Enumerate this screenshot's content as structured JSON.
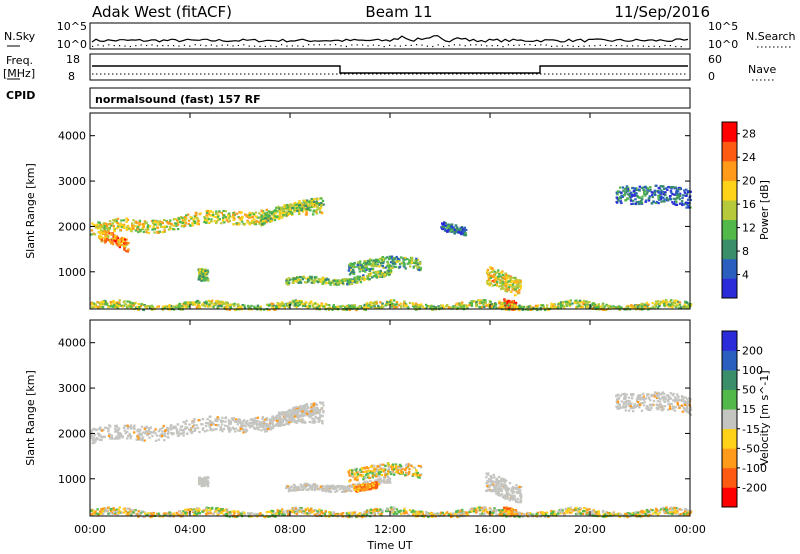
{
  "header": {
    "station": "Adak West (fitACF)",
    "beam": "Beam 11",
    "date": "11/Sep/2016"
  },
  "parameter_panels": {
    "nsky_label": "N.Sky",
    "nsky_ticks": [
      "10^5",
      "10^0"
    ],
    "nsearch_label": "N.Search",
    "nsearch_ticks": [
      "10^5",
      "10^0"
    ],
    "freq_label": "Freq.",
    "freq_unit": "[MHz]",
    "freq_ticks": [
      "18",
      "8"
    ],
    "nave_label": "Nave",
    "nave_ticks": [
      "60",
      "0"
    ],
    "cpid_label": "CPID",
    "cpid_value": "normalsound (fast) 157 RF"
  },
  "colors": {
    "scale": [
      "#2b2bd9",
      "#2b5fbf",
      "#3a8f6a",
      "#52b84a",
      "#b5c93a",
      "#ffd21a",
      "#ff9a1a",
      "#ff5a12",
      "#ff0000"
    ],
    "ground_scatter": "#c4c4c0"
  },
  "chart_data": [
    {
      "type": "heatmap",
      "panel": "power",
      "ylabel": "Slant Range [km]",
      "xlabel": "",
      "xlim": [
        0,
        24
      ],
      "ylim": [
        180,
        4500
      ],
      "y_ticks": [
        "1000",
        "2000",
        "3000",
        "4000"
      ],
      "colorbar_label": "Power [dB]",
      "colorbar_ticks": [
        "4",
        "8",
        "12",
        "16",
        "20",
        "24",
        "28"
      ],
      "colorbar_range": [
        0,
        30
      ],
      "regions": [
        {
          "x0": 0.0,
          "x1": 9.3,
          "y_start": 1950,
          "y_end": 2400,
          "thickness": 280,
          "level": 0.55
        },
        {
          "x0": 0.3,
          "x1": 1.5,
          "y_start": 1800,
          "y_end": 1550,
          "thickness": 260,
          "level": 0.75
        },
        {
          "x0": 6.8,
          "x1": 9.3,
          "y_start": 2200,
          "y_end": 2550,
          "thickness": 220,
          "level": 0.45
        },
        {
          "x0": 4.3,
          "x1": 4.7,
          "y_start": 900,
          "y_end": 900,
          "thickness": 260,
          "level": 0.4
        },
        {
          "x0": 7.8,
          "x1": 12.0,
          "y_start": 760,
          "y_end": 950,
          "thickness": 140,
          "level": 0.4
        },
        {
          "x0": 10.3,
          "x1": 13.2,
          "y_start": 1150,
          "y_end": 1200,
          "thickness": 260,
          "level": 0.35
        },
        {
          "x0": 15.8,
          "x1": 17.2,
          "y_start": 900,
          "y_end": 700,
          "thickness": 420,
          "level": 0.6
        },
        {
          "x0": 16.5,
          "x1": 17.0,
          "y_start": 300,
          "y_end": 300,
          "thickness": 220,
          "level": 0.95
        },
        {
          "x0": 0.0,
          "x1": 24.0,
          "y_start": 260,
          "y_end": 260,
          "thickness": 160,
          "level": 0.5
        },
        {
          "x0": 21.0,
          "x1": 24.0,
          "y_start": 2800,
          "y_end": 2600,
          "thickness": 400,
          "level": 0.15
        },
        {
          "x0": 14.0,
          "x1": 15.0,
          "y_start": 2100,
          "y_end": 1900,
          "thickness": 200,
          "level": 0.15
        }
      ]
    },
    {
      "type": "heatmap",
      "panel": "velocity",
      "ylabel": "Slant Range [km]",
      "xlabel": "Time UT",
      "xlim": [
        0,
        24
      ],
      "ylim": [
        180,
        4500
      ],
      "x_ticks": [
        "00:00",
        "04:00",
        "08:00",
        "12:00",
        "16:00",
        "20:00",
        "00:00"
      ],
      "y_ticks": [
        "1000",
        "2000",
        "3000",
        "4000"
      ],
      "colorbar_label": "Velocity [m s^-1]",
      "colorbar_ticks": [
        "200",
        "100",
        "50",
        "15",
        "-15",
        "-50",
        "-100",
        "-200"
      ],
      "colorbar_range": [
        -250,
        250
      ],
      "regions": [
        {
          "x0": 0.0,
          "x1": 9.3,
          "y_start": 1950,
          "y_end": 2400,
          "thickness": 320,
          "kind": "ground"
        },
        {
          "x0": 6.8,
          "x1": 9.3,
          "y_start": 2200,
          "y_end": 2600,
          "thickness": 260,
          "kind": "ground"
        },
        {
          "x0": 4.3,
          "x1": 4.7,
          "y_start": 900,
          "y_end": 900,
          "thickness": 200,
          "kind": "ground"
        },
        {
          "x0": 7.8,
          "x1": 12.0,
          "y_start": 760,
          "y_end": 950,
          "thickness": 140,
          "kind": "ground"
        },
        {
          "x0": 10.5,
          "x1": 11.5,
          "y_start": 850,
          "y_end": 850,
          "thickness": 140,
          "kind": "negative"
        },
        {
          "x0": 10.3,
          "x1": 13.2,
          "y_start": 1150,
          "y_end": 1200,
          "thickness": 260,
          "kind": "mixed"
        },
        {
          "x0": 15.8,
          "x1": 17.2,
          "y_start": 900,
          "y_end": 700,
          "thickness": 420,
          "kind": "ground"
        },
        {
          "x0": 16.5,
          "x1": 17.0,
          "y_start": 300,
          "y_end": 300,
          "thickness": 180,
          "kind": "negative"
        },
        {
          "x0": 0.0,
          "x1": 24.0,
          "y_start": 260,
          "y_end": 260,
          "thickness": 150,
          "kind": "mixed"
        },
        {
          "x0": 21.0,
          "x1": 24.0,
          "y_start": 2800,
          "y_end": 2600,
          "thickness": 400,
          "kind": "ground"
        }
      ]
    }
  ]
}
